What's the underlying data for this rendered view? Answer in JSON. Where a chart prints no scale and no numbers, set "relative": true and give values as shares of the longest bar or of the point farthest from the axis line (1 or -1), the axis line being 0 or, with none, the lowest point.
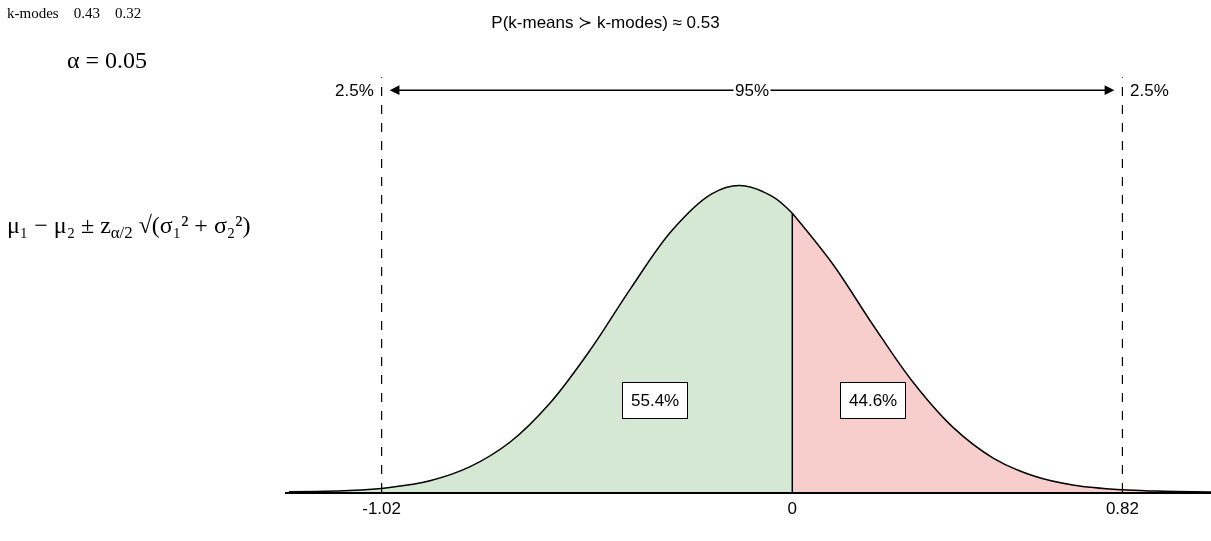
{
  "chart_data": {
    "type": "area",
    "title": "P(k-means ≻ k-modes) ≈ 0.53",
    "relative": true,
    "series": [
      {
        "color": "#d5e8d4",
        "x": [
          -1.25,
          -1.1,
          -1.0,
          -0.9,
          -0.8,
          -0.7,
          -0.6,
          -0.5,
          -0.4,
          -0.3,
          -0.2,
          -0.13,
          -0.05,
          0
        ],
        "values": [
          0.001,
          0.005,
          0.015,
          0.037,
          0.083,
          0.164,
          0.293,
          0.467,
          0.667,
          0.852,
          0.973,
          1.0,
          0.965,
          0.91
        ]
      },
      {
        "color": "#f8cecc",
        "x": [
          0,
          0.1,
          0.2,
          0.3,
          0.4,
          0.5,
          0.6,
          0.7,
          0.82,
          0.9,
          1.04
        ],
        "values": [
          0.91,
          0.745,
          0.546,
          0.358,
          0.21,
          0.11,
          0.052,
          0.022,
          0.007,
          0.003,
          0.0
        ]
      }
    ],
    "xlim": [
      -1.26,
      1.04
    ],
    "xticks": [
      -1.02,
      0,
      0.82
    ],
    "ref_lines": [
      {
        "axis": "x",
        "value": -1.02,
        "line_style": "dashed"
      },
      {
        "axis": "x",
        "value": 0.82,
        "line_style": "dashed"
      }
    ],
    "annotations": [
      "k-modes    0.43    0.32",
      "α = 0.05",
      "μ₁ − μ₂ ± z$_{α/2}$ √(σ₁² + σ₂²)",
      "2.5%",
      "95%",
      "2.5%",
      "55.4%",
      "44.6%"
    ]
  }
}
